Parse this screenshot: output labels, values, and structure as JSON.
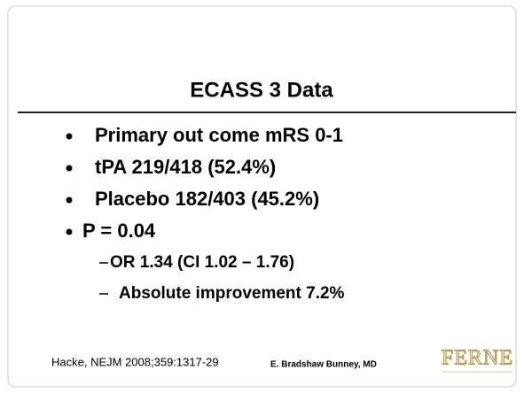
{
  "slide": {
    "title": "ECASS 3 Data",
    "bullets": [
      "Primary out come mRS 0-1",
      "tPA 219/418 (52.4%)",
      "Placebo 182/403 (45.2%)",
      "P = 0.04"
    ],
    "sub_bullets": [
      "OR 1.34 (CI 1.02 – 1.76)",
      "Absolute improvement 7.2%"
    ],
    "footer": {
      "citation": "Hacke, NEJM 2008;359:1317-29",
      "author": "E. Bradshaw Bunney, MD",
      "logo": "FERNE"
    }
  }
}
